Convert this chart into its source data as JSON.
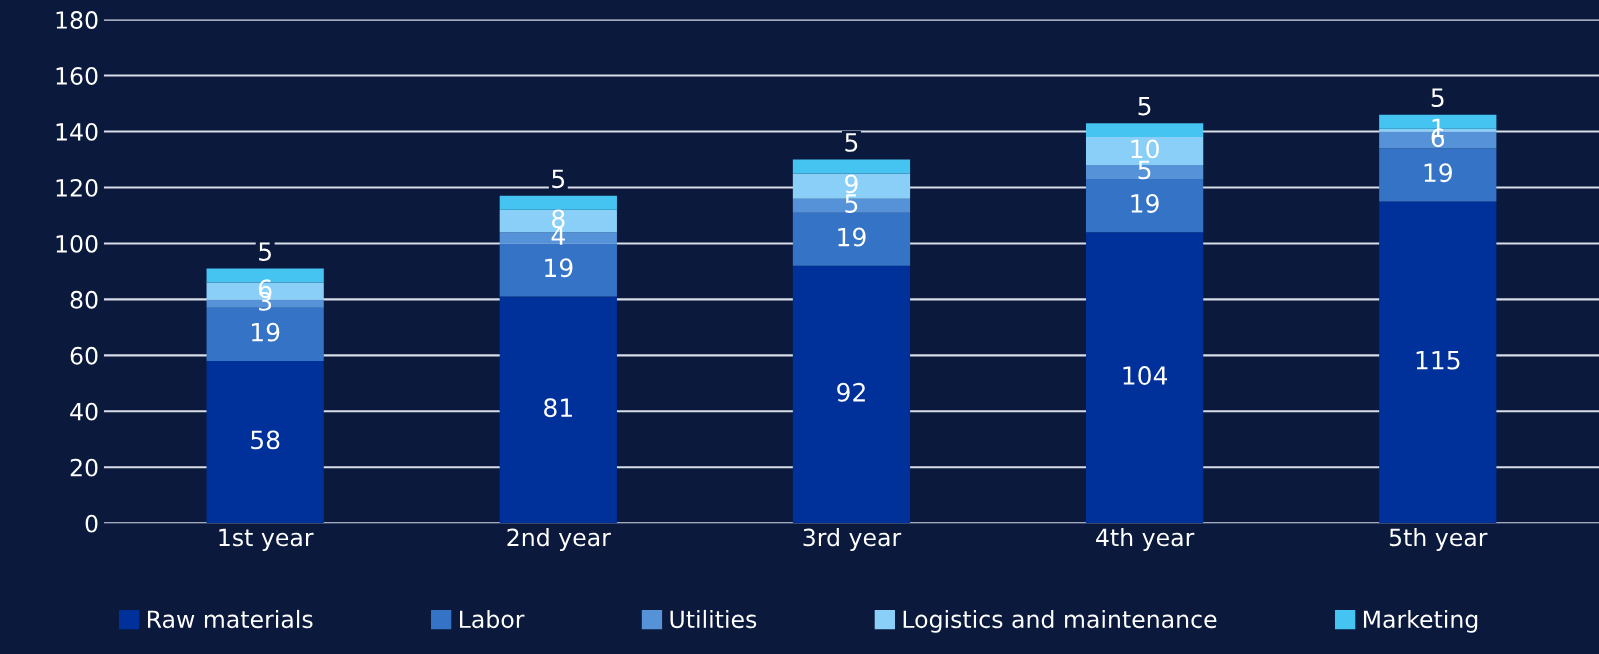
{
  "chart_data": {
    "type": "bar",
    "stacked": true,
    "categories": [
      "1st year",
      "2nd year",
      "3rd year",
      "4th year",
      "5th year"
    ],
    "series": [
      {
        "name": "Raw materials",
        "color": "#00309a",
        "values": [
          58,
          81,
          92,
          104,
          115
        ],
        "value_labels": [
          "58",
          "81",
          "92",
          "104",
          "115"
        ]
      },
      {
        "name": "Labor",
        "color": "#3473c5",
        "values": [
          19,
          19,
          19,
          19,
          19
        ],
        "value_labels": [
          "19",
          "19",
          "19",
          "19",
          "19"
        ]
      },
      {
        "name": "Utilities",
        "color": "#5592d8",
        "values": [
          3,
          4,
          5,
          5,
          6
        ],
        "value_labels": [
          "3",
          "4",
          "5",
          "5",
          "6"
        ]
      },
      {
        "name": "Logistics and maintenance",
        "color": "#8acff8",
        "values": [
          6,
          8,
          9,
          10,
          1
        ],
        "value_labels": [
          "6",
          "8",
          "9",
          "10",
          "1"
        ]
      },
      {
        "name": "Marketing",
        "color": "#45c4f2",
        "values": [
          5,
          5,
          5,
          5,
          5
        ],
        "value_labels": [
          "5",
          "5",
          "5",
          "5",
          "5"
        ]
      }
    ],
    "ylim": [
      0,
      180
    ],
    "yticks": [
      0,
      20,
      40,
      60,
      80,
      100,
      120,
      140,
      160,
      180
    ],
    "grid": "y",
    "legend": "bottom"
  }
}
